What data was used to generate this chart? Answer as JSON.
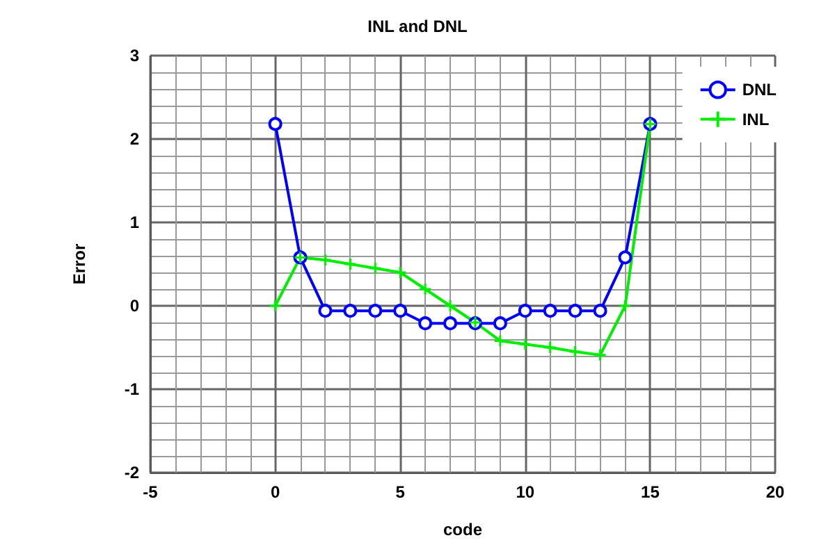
{
  "chart_data": {
    "type": "line",
    "title": "INL and DNL",
    "xlabel": "code",
    "ylabel": "Error",
    "x": [
      0,
      1,
      2,
      3,
      4,
      5,
      6,
      7,
      8,
      9,
      10,
      11,
      12,
      13,
      14,
      15
    ],
    "series": [
      {
        "name": "DNL",
        "color": "#0000ff",
        "marker": "circle",
        "values": [
          2.18,
          0.58,
          -0.06,
          -0.06,
          -0.06,
          -0.06,
          -0.21,
          -0.21,
          -0.21,
          -0.21,
          -0.06,
          -0.06,
          -0.06,
          -0.06,
          0.58,
          2.18
        ]
      },
      {
        "name": "INL",
        "color": "#00ee00",
        "marker": "cross",
        "values": [
          0,
          0.58,
          0.55,
          0.5,
          0.45,
          0.4,
          0.2,
          0,
          -0.2,
          -0.42,
          -0.46,
          -0.5,
          -0.55,
          -0.59,
          0,
          2.18
        ]
      }
    ],
    "xlim": [
      -5,
      20
    ],
    "xticks": [
      -5,
      0,
      5,
      10,
      15,
      20
    ],
    "ylim": [
      -2,
      3
    ],
    "yticks": [
      -2,
      -1,
      0,
      1,
      2,
      3
    ],
    "grid": true,
    "legend": "top right",
    "line_style": "solid"
  }
}
